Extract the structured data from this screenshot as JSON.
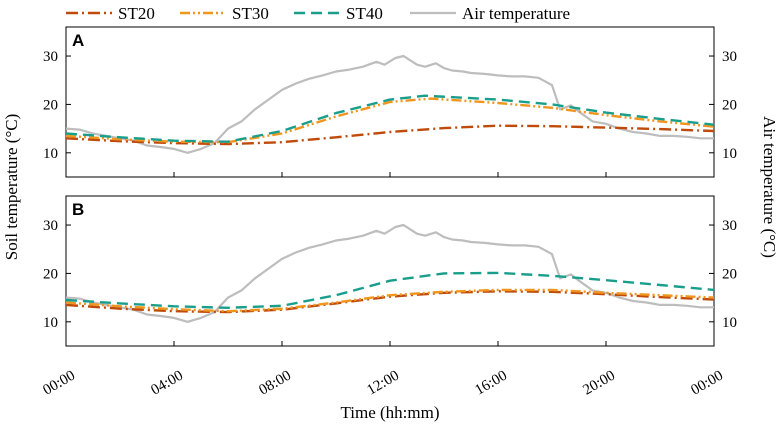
{
  "chart_data": {
    "type": "line",
    "legend": [
      {
        "name": "ST20",
        "color": "#c04a0a",
        "dash": "dashdot"
      },
      {
        "name": "ST30",
        "color": "#f0961e",
        "dash": "dashdotdot"
      },
      {
        "name": "ST40",
        "color": "#1a9e8c",
        "dash": "dashed"
      },
      {
        "name": "Air temperature",
        "color": "#bdbdbd",
        "dash": "solid"
      }
    ],
    "xlabel": "Time (hh:mm)",
    "ylabel_left": "Soil temperature (°C)",
    "ylabel_right": "Air temperature (°C)",
    "x_range": [
      0,
      24
    ],
    "y_range": [
      5,
      36
    ],
    "x_ticks": [
      "00:00",
      "04:00",
      "08:00",
      "12:00",
      "16:00",
      "20:00",
      "00:00"
    ],
    "y_ticks": [
      "10",
      "20",
      "30"
    ],
    "air_temperature": {
      "x": [
        0,
        0.5,
        1,
        1.5,
        2,
        2.5,
        3,
        3.5,
        4,
        4.5,
        5,
        5.5,
        6,
        6.5,
        7,
        7.5,
        8,
        8.5,
        9,
        9.5,
        10,
        10.5,
        11,
        11.5,
        11.8,
        12.2,
        12.5,
        13,
        13.3,
        13.7,
        14,
        14.3,
        14.7,
        15,
        15.5,
        16,
        16.5,
        17,
        17.5,
        18,
        18.3,
        18.7,
        19,
        19.5,
        20,
        20.5,
        21,
        21.5,
        22,
        22.5,
        23,
        23.5,
        24
      ],
      "y": [
        15.0,
        14.8,
        14.0,
        13.5,
        13.0,
        12.5,
        11.5,
        11.2,
        10.8,
        10.0,
        10.8,
        12.0,
        15.0,
        16.5,
        19.0,
        21.0,
        23.0,
        24.3,
        25.3,
        26.0,
        26.8,
        27.2,
        27.8,
        28.8,
        28.2,
        29.6,
        30.0,
        28.2,
        27.8,
        28.5,
        27.5,
        27.0,
        26.8,
        26.5,
        26.3,
        26.0,
        25.8,
        25.8,
        25.5,
        24.0,
        19.0,
        19.8,
        18.5,
        16.5,
        16.0,
        15.0,
        14.3,
        14.0,
        13.5,
        13.5,
        13.3,
        13.0,
        13.0
      ]
    },
    "panels": [
      {
        "label": "A",
        "series": [
          {
            "name": "ST20",
            "x": [
              0,
              2,
              4,
              6,
              8,
              10,
              12,
              14,
              16,
              18,
              20,
              22,
              24
            ],
            "y": [
              13.0,
              12.4,
              12.0,
              11.8,
              12.2,
              13.2,
              14.3,
              15.1,
              15.6,
              15.5,
              15.2,
              14.9,
              14.5
            ]
          },
          {
            "name": "ST30",
            "x": [
              0,
              2,
              4,
              6,
              8,
              10,
              12,
              13.5,
              16,
              18,
              20,
              22,
              24
            ],
            "y": [
              13.5,
              12.8,
              12.3,
              12.2,
              14.0,
              17.5,
              20.5,
              21.2,
              20.3,
              19.3,
              17.8,
              16.5,
              15.4
            ]
          },
          {
            "name": "ST40",
            "x": [
              0,
              2,
              4,
              6,
              8,
              10,
              12,
              13.3,
              16,
              18,
              20,
              22,
              24
            ],
            "y": [
              14.0,
              13.2,
              12.5,
              12.3,
              14.5,
              18.2,
              21.0,
              21.8,
              21.0,
              20.0,
              18.3,
              17.0,
              15.8
            ]
          }
        ]
      },
      {
        "label": "B",
        "series": [
          {
            "name": "ST20",
            "x": [
              0,
              2,
              4,
              6,
              8,
              10,
              12,
              14,
              16,
              18,
              20,
              22,
              24
            ],
            "y": [
              13.5,
              12.7,
              12.2,
              12.0,
              12.5,
              13.8,
              15.2,
              16.0,
              16.3,
              16.2,
              15.7,
              15.1,
              14.6
            ]
          },
          {
            "name": "ST30",
            "x": [
              0,
              2,
              4,
              6,
              8,
              10,
              12,
              14,
              16,
              18,
              20,
              22,
              24
            ],
            "y": [
              14.0,
              13.2,
              12.6,
              12.2,
              12.7,
              14.0,
              15.5,
              16.2,
              16.6,
              16.6,
              16.0,
              15.5,
              15.0
            ]
          },
          {
            "name": "ST40",
            "x": [
              0,
              2,
              4,
              6,
              8,
              10,
              12,
              14,
              16,
              18,
              20,
              22,
              24
            ],
            "y": [
              14.5,
              13.8,
              13.2,
              12.9,
              13.3,
              15.5,
              18.5,
              20.0,
              20.1,
              19.5,
              18.6,
              17.6,
              16.6
            ]
          }
        ]
      }
    ]
  }
}
